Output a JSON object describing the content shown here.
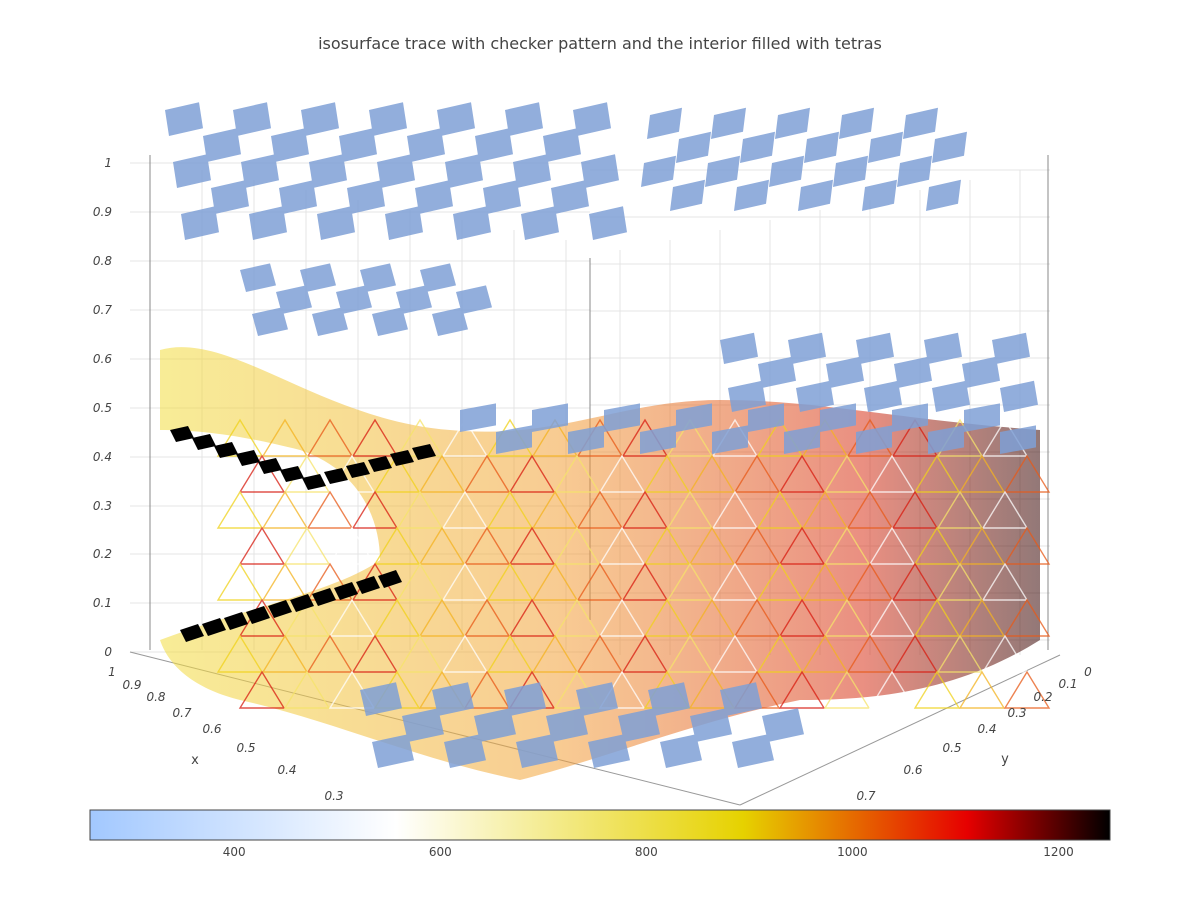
{
  "chart_data": {
    "type": "isosurface",
    "title": "isosurface trace with checker pattern and the interior filled with tetras",
    "axes": {
      "x": {
        "label": "x",
        "ticks": [
          "1",
          "0.9",
          "0.8",
          "0.7",
          "0.6",
          "0.5",
          "0.4",
          "0.3"
        ]
      },
      "y": {
        "label": "y",
        "ticks": [
          "0",
          "0.1",
          "0.2",
          "0.3",
          "0.4",
          "0.5",
          "0.6",
          "0.7"
        ]
      },
      "z": {
        "label": "",
        "ticks": [
          "0",
          "0.1",
          "0.2",
          "0.3",
          "0.4",
          "0.5",
          "0.6",
          "0.7",
          "0.8",
          "0.9",
          "1"
        ]
      }
    },
    "colorbar": {
      "orientation": "horizontal",
      "range": [
        260,
        1250
      ],
      "ticks": [
        "400",
        "600",
        "800",
        "1000",
        "1200"
      ],
      "tick_values": [
        400,
        600,
        800,
        1000,
        1200
      ],
      "colorscale": [
        "#a2c8ff",
        "#ffffff",
        "#e6d200",
        "#e60000",
        "#000000"
      ]
    },
    "surface_pattern": "checker",
    "interior_fill": "tetras"
  }
}
